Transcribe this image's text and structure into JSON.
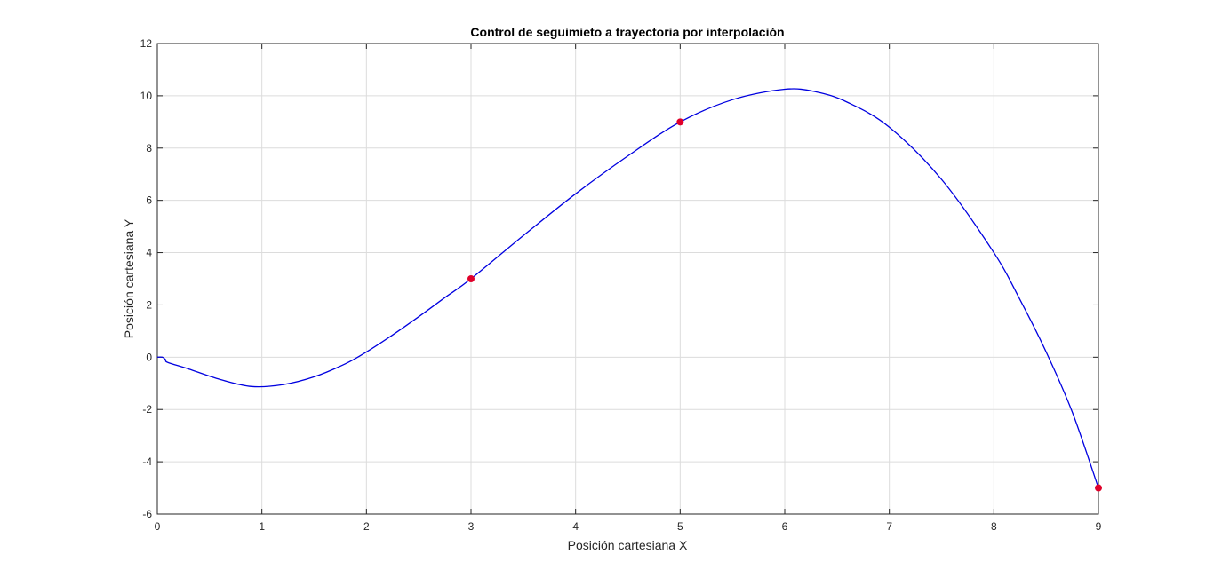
{
  "chart_data": {
    "type": "line",
    "title": "Control de seguimieto a trayectoria por interpolación",
    "xlabel": "Posición cartesiana X",
    "ylabel": "Posición cartesiana Y",
    "xlim": [
      0,
      9
    ],
    "ylim": [
      -6,
      12
    ],
    "xticks": [
      0,
      1,
      2,
      3,
      4,
      5,
      6,
      7,
      8,
      9
    ],
    "yticks": [
      -6,
      -4,
      -2,
      0,
      2,
      4,
      6,
      8,
      10,
      12
    ],
    "grid": true,
    "series": [
      {
        "color": "#0000e0",
        "x": [
          0,
          0.05,
          0.08,
          0.1,
          0.3,
          0.6,
          0.9,
          1.2,
          1.5,
          1.8,
          2.0,
          2.25,
          2.5,
          2.75,
          3.0,
          3.5,
          4.0,
          4.5,
          5.0,
          5.5,
          6.0,
          6.3,
          6.6,
          7.0,
          7.5,
          8.0,
          8.25,
          8.5,
          8.75,
          9.0
        ],
        "y": [
          0,
          0,
          -0.1,
          -0.2,
          -0.45,
          -0.85,
          -1.12,
          -1.05,
          -0.75,
          -0.25,
          0.2,
          0.85,
          1.55,
          2.28,
          3.0,
          4.65,
          6.25,
          7.7,
          9.0,
          9.85,
          10.25,
          10.15,
          9.75,
          8.8,
          6.8,
          4.0,
          2.2,
          0.2,
          -2.1,
          -5.0
        ]
      }
    ],
    "markers": {
      "color": "#e0002a",
      "x": [
        3,
        5,
        9
      ],
      "y": [
        3,
        9,
        -5
      ]
    }
  }
}
